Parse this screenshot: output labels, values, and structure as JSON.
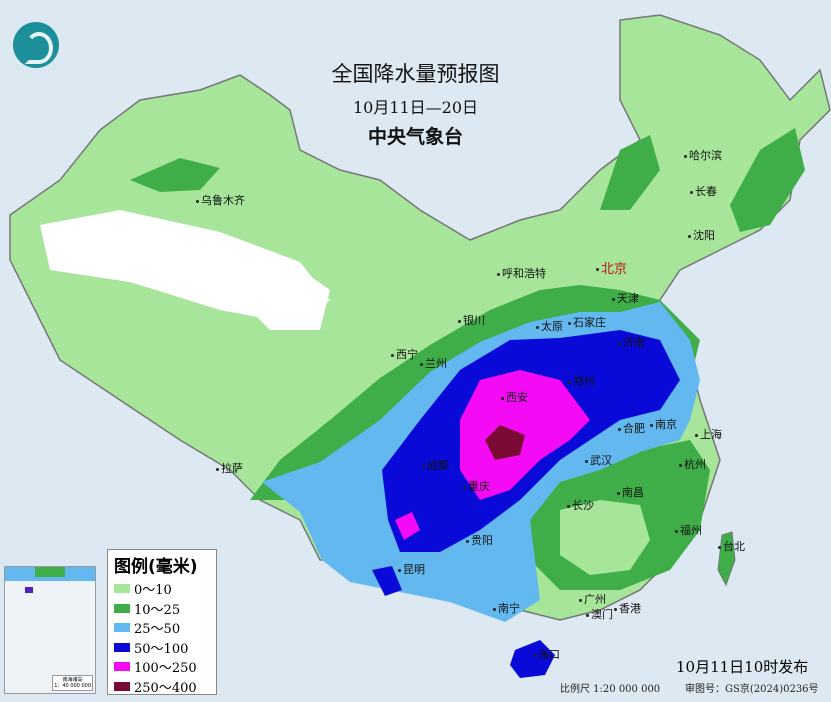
{
  "header": {
    "title": "全国降水量预报图",
    "date_range": "10月11日—20日",
    "issuer": "中央气象台"
  },
  "legend": {
    "title": "图例(毫米)",
    "items": [
      {
        "label": "0～10",
        "color": "#a6e59a"
      },
      {
        "label": "10～25",
        "color": "#3fae49"
      },
      {
        "label": "25～50",
        "color": "#64b8f0"
      },
      {
        "label": "50～100",
        "color": "#0a0ad8"
      },
      {
        "label": "100～250",
        "color": "#f50af5"
      },
      {
        "label": "250～400",
        "color": "#7a0a33"
      }
    ]
  },
  "cities": [
    {
      "name": "乌鲁木齐"
    },
    {
      "name": "哈尔滨"
    },
    {
      "name": "长春"
    },
    {
      "name": "沈阳"
    },
    {
      "name": "北京",
      "capital": true
    },
    {
      "name": "天津"
    },
    {
      "name": "呼和浩特"
    },
    {
      "name": "石家庄"
    },
    {
      "name": "太原"
    },
    {
      "name": "济南"
    },
    {
      "name": "银川"
    },
    {
      "name": "西宁"
    },
    {
      "name": "兰州"
    },
    {
      "name": "郑州"
    },
    {
      "name": "西安"
    },
    {
      "name": "合肥"
    },
    {
      "name": "南京"
    },
    {
      "name": "上海"
    },
    {
      "name": "武汉"
    },
    {
      "name": "杭州"
    },
    {
      "name": "成都"
    },
    {
      "name": "重庆"
    },
    {
      "name": "拉萨"
    },
    {
      "name": "长沙"
    },
    {
      "name": "南昌"
    },
    {
      "name": "贵阳"
    },
    {
      "name": "福州"
    },
    {
      "name": "台北"
    },
    {
      "name": "昆明"
    },
    {
      "name": "广州"
    },
    {
      "name": "南宁"
    },
    {
      "name": "澳门"
    },
    {
      "name": "香港"
    },
    {
      "name": "海口"
    }
  ],
  "inset": {
    "label": "南海诸岛",
    "scale": "1：40 000 000"
  },
  "footer": {
    "issued": "10月11日10时发布",
    "scale": "比例尺 1:20 000 000",
    "approval": "审图号：GS京(2024)0236号"
  }
}
